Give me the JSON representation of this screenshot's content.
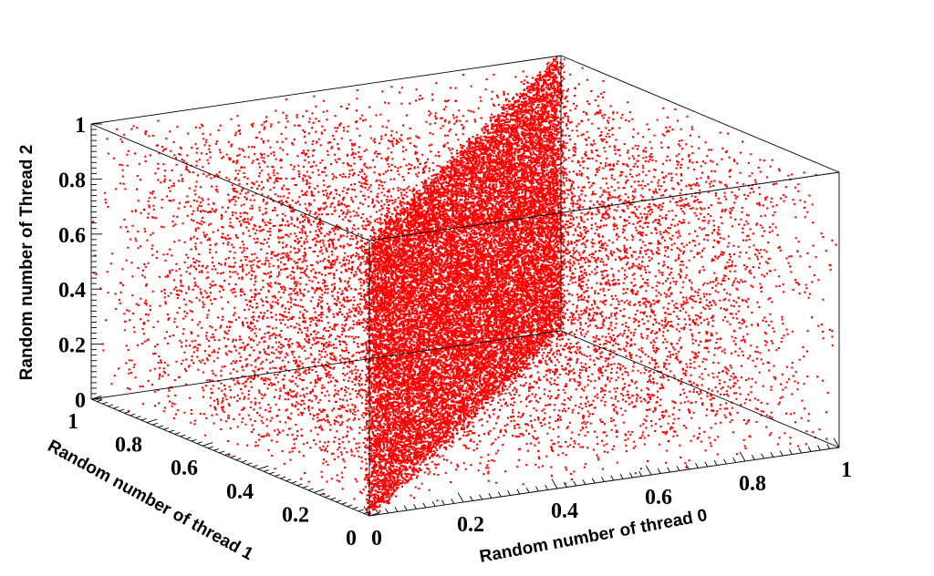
{
  "chart_data": {
    "type": "scatter",
    "dimensions": 3,
    "marker_color": "#ff0000",
    "background": "#ffffff",
    "axes": {
      "x": {
        "label": "Random number of thread 0",
        "range": [
          0,
          1
        ],
        "tick_labels": [
          "0",
          "0.2",
          "0.4",
          "0.6",
          "0.8",
          "1"
        ]
      },
      "y": {
        "label": "Random number of thread 1",
        "range": [
          0,
          1
        ],
        "tick_labels": [
          "0",
          "0.2",
          "0.4",
          "0.6",
          "0.8",
          "1"
        ]
      },
      "z": {
        "label": "Random number of Thread 2",
        "range": [
          0,
          1
        ],
        "tick_labels": [
          "0",
          "0.2",
          "0.4",
          "0.6",
          "0.8",
          "1"
        ]
      }
    },
    "series": [
      {
        "distribution": "uniform in unit cube, dense band along x = y plane",
        "pattern_samples": [
          [
            0.1,
            0.1,
            0.2
          ],
          [
            0.35,
            0.35,
            0.55
          ],
          [
            0.5,
            0.5,
            0.1
          ],
          [
            0.75,
            0.75,
            0.8
          ],
          [
            0.9,
            0.9,
            0.4
          ],
          [
            0.2,
            0.8,
            0.7
          ],
          [
            0.8,
            0.2,
            0.3
          ],
          [
            0.6,
            0.3,
            0.9
          ],
          [
            0.3,
            0.6,
            0.15
          ],
          [
            0.95,
            0.05,
            0.6
          ]
        ]
      }
    ]
  }
}
